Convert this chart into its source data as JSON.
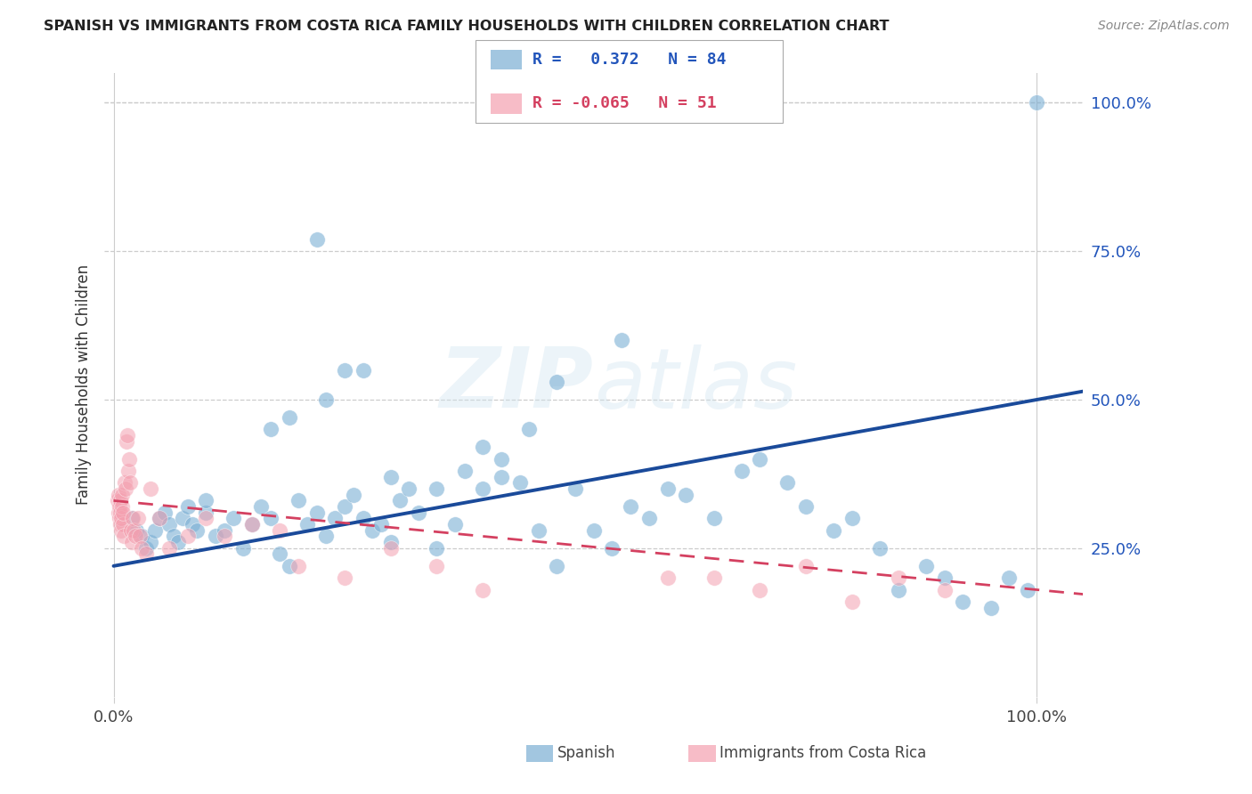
{
  "title": "SPANISH VS IMMIGRANTS FROM COSTA RICA FAMILY HOUSEHOLDS WITH CHILDREN CORRELATION CHART",
  "source": "Source: ZipAtlas.com",
  "ylabel": "Family Households with Children",
  "legend_label1": "Spanish",
  "legend_label2": "Immigrants from Costa Rica",
  "R1": 0.372,
  "N1": 84,
  "R2": -0.065,
  "N2": 51,
  "blue_color": "#7bafd4",
  "pink_color": "#f4a0b0",
  "trend_blue": "#1a4a9a",
  "trend_pink": "#d44060",
  "watermark": "ZIPatlas",
  "blue_x": [
    0.02,
    0.025,
    0.03,
    0.035,
    0.04,
    0.045,
    0.05,
    0.055,
    0.06,
    0.065,
    0.07,
    0.075,
    0.08,
    0.085,
    0.09,
    0.1,
    0.1,
    0.11,
    0.12,
    0.13,
    0.14,
    0.15,
    0.16,
    0.17,
    0.18,
    0.19,
    0.2,
    0.21,
    0.22,
    0.23,
    0.24,
    0.25,
    0.26,
    0.27,
    0.28,
    0.29,
    0.3,
    0.31,
    0.32,
    0.33,
    0.35,
    0.37,
    0.38,
    0.4,
    0.42,
    0.44,
    0.46,
    0.48,
    0.5,
    0.52,
    0.54,
    0.56,
    0.58,
    0.6,
    0.62,
    0.65,
    0.68,
    0.7,
    0.73,
    0.75,
    0.78,
    0.8,
    0.83,
    0.85,
    0.88,
    0.9,
    0.92,
    0.95,
    0.97,
    0.99,
    0.27,
    0.3,
    0.22,
    0.48,
    0.55,
    0.19,
    0.23,
    0.17,
    0.25,
    0.35,
    0.4,
    0.42,
    0.45,
    1.0
  ],
  "blue_y": [
    0.3,
    0.28,
    0.27,
    0.25,
    0.26,
    0.28,
    0.3,
    0.31,
    0.29,
    0.27,
    0.26,
    0.3,
    0.32,
    0.29,
    0.28,
    0.31,
    0.33,
    0.27,
    0.28,
    0.3,
    0.25,
    0.29,
    0.32,
    0.3,
    0.24,
    0.22,
    0.33,
    0.29,
    0.31,
    0.27,
    0.3,
    0.32,
    0.34,
    0.3,
    0.28,
    0.29,
    0.26,
    0.33,
    0.35,
    0.31,
    0.25,
    0.29,
    0.38,
    0.35,
    0.37,
    0.36,
    0.28,
    0.22,
    0.35,
    0.28,
    0.25,
    0.32,
    0.3,
    0.35,
    0.34,
    0.3,
    0.38,
    0.4,
    0.36,
    0.32,
    0.28,
    0.3,
    0.25,
    0.18,
    0.22,
    0.2,
    0.16,
    0.15,
    0.2,
    0.18,
    0.55,
    0.37,
    0.77,
    0.53,
    0.6,
    0.47,
    0.5,
    0.45,
    0.55,
    0.35,
    0.42,
    0.4,
    0.45,
    1.0
  ],
  "pink_x": [
    0.004,
    0.005,
    0.005,
    0.006,
    0.006,
    0.007,
    0.007,
    0.007,
    0.008,
    0.008,
    0.009,
    0.009,
    0.01,
    0.01,
    0.011,
    0.012,
    0.013,
    0.014,
    0.015,
    0.016,
    0.017,
    0.018,
    0.019,
    0.02,
    0.021,
    0.022,
    0.024,
    0.026,
    0.028,
    0.03,
    0.035,
    0.04,
    0.05,
    0.06,
    0.08,
    0.1,
    0.12,
    0.15,
    0.18,
    0.2,
    0.25,
    0.3,
    0.35,
    0.4,
    0.6,
    0.65,
    0.7,
    0.75,
    0.8,
    0.85,
    0.9
  ],
  "pink_y": [
    0.33,
    0.31,
    0.34,
    0.3,
    0.32,
    0.29,
    0.31,
    0.33,
    0.28,
    0.3,
    0.32,
    0.34,
    0.29,
    0.31,
    0.27,
    0.36,
    0.35,
    0.43,
    0.44,
    0.38,
    0.4,
    0.36,
    0.28,
    0.26,
    0.3,
    0.28,
    0.27,
    0.3,
    0.27,
    0.25,
    0.24,
    0.35,
    0.3,
    0.25,
    0.27,
    0.3,
    0.27,
    0.29,
    0.28,
    0.22,
    0.2,
    0.25,
    0.22,
    0.18,
    0.2,
    0.2,
    0.18,
    0.22,
    0.16,
    0.2,
    0.18
  ],
  "ylim": [
    0.0,
    1.05
  ],
  "xlim": [
    -0.01,
    1.05
  ],
  "yticks": [
    0.0,
    0.25,
    0.5,
    0.75,
    1.0
  ],
  "ytick_labels": [
    "",
    "25.0%",
    "50.0%",
    "75.0%",
    "100.0%"
  ],
  "xticks": [
    0.0,
    1.0
  ],
  "xtick_labels": [
    "0.0%",
    "100.0%"
  ],
  "grid_color": "#cccccc",
  "bg_color": "#ffffff",
  "blue_trend_start_y": 0.22,
  "blue_trend_end_y": 0.5,
  "pink_trend_start_y": 0.33,
  "pink_trend_end_y": 0.18
}
